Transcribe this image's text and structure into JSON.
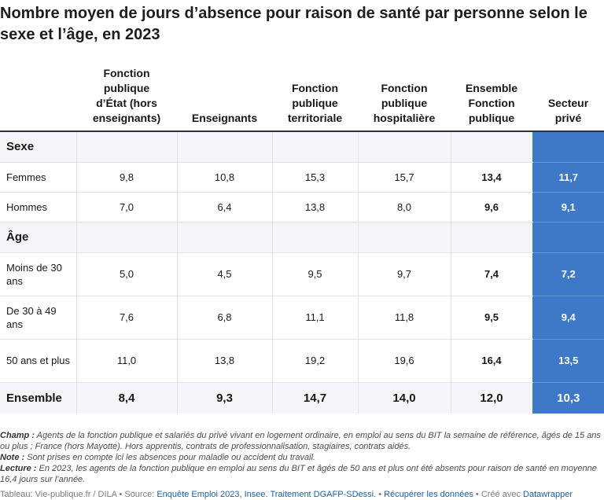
{
  "title": "Nombre moyen de jours d’absence pour raison de santé par personne selon le sexe et l’âge, en 2023",
  "chart_data": {
    "type": "table",
    "columns": [
      "",
      "Fonction publique d’État (hors enseignants)",
      "Enseignants",
      "Fonction publique territoriale",
      "Fonction publique hospitalière",
      "Ensemble Fonction publique",
      "Secteur privé"
    ],
    "columns_display": [
      "",
      "Fonction\npublique\nd’État (hors\nenseignants)",
      "Enseignants",
      "Fonction\npublique\nterritoriale",
      "Fonction\npublique\nhospitalière",
      "Ensemble\nFonction\npublique",
      "Secteur\nprivé"
    ],
    "rows": [
      {
        "label": "Sexe",
        "section": true,
        "values": [
          "",
          "",
          "",
          "",
          "",
          ""
        ]
      },
      {
        "label": "Femmes",
        "values": [
          "9,8",
          "10,8",
          "15,3",
          "15,7",
          "13,4",
          "11,7"
        ]
      },
      {
        "label": "Hommes",
        "values": [
          "7,0",
          "6,4",
          "13,8",
          "8,0",
          "9,6",
          "9,1"
        ]
      },
      {
        "label": "Âge",
        "section": true,
        "values": [
          "",
          "",
          "",
          "",
          "",
          ""
        ]
      },
      {
        "label": "Moins de 30 ans",
        "values": [
          "5,0",
          "4,5",
          "9,5",
          "9,7",
          "7,4",
          "7,2"
        ]
      },
      {
        "label": "De 30 à 49 ans",
        "values": [
          "7,6",
          "6,8",
          "11,1",
          "11,8",
          "9,5",
          "9,4"
        ]
      },
      {
        "label": "50 ans et plus",
        "values": [
          "11,0",
          "13,8",
          "19,2",
          "19,6",
          "16,4",
          "13,5"
        ]
      },
      {
        "label": "Ensemble",
        "total": true,
        "values": [
          "8,4",
          "9,3",
          "14,7",
          "14,0",
          "12,0",
          "10,3"
        ]
      }
    ],
    "highlight_column": "Secteur privé",
    "highlight_color": "#3d79c6",
    "bold_column": "Ensemble Fonction publique"
  },
  "notes": {
    "champ_label": "Champ :",
    "champ_text": " Agents de la fonction publique et salariés du privé vivant en logement ordinaire, en emploi au sens du BIT la semaine de référence, âgés de 15 ans ou plus ; France (hors Mayotte). Hors apprentis, contrats de professionnalisation, stagiaires, contrats aidés.",
    "note_label": "Note :",
    "note_text": " Sont prises en compte ici les absences pour maladie ou accident du travail.",
    "lecture_label": "Lecture :",
    "lecture_text": " En 2023, les agents de la fonction publique en emploi au sens du BIT et âgés de 50 ans et plus ont été absents pour raison de santé en moyenne 16,4 jours sur l’année."
  },
  "footer": {
    "prefix": "Tableau: Vie-publique.fr / DILA • Source: ",
    "source_link": "Enquête Emploi 2023, Insee. Traitement DGAFP-SDessi.",
    "sep1": " • ",
    "download_link": "Récupérer les données",
    "sep2": " • Créé avec ",
    "tool_link": "Datawrapper"
  }
}
